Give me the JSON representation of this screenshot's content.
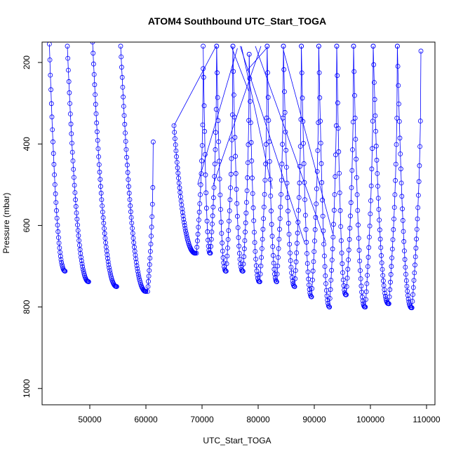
{
  "chart_data": {
    "type": "scatter",
    "title": "ATOM4 Southbound UTC_Start_TOGA",
    "xlabel": "UTC_Start_TOGA",
    "ylabel": "Pressure (mbar)",
    "xlim": [
      41500,
      111500
    ],
    "ylim": [
      1040,
      150
    ],
    "y_reversed": true,
    "x_ticks": [
      50000,
      60000,
      70000,
      80000,
      90000,
      100000,
      110000
    ],
    "x_tick_labels": [
      "50000",
      "60000",
      "70000",
      "80000",
      "90000",
      "100000",
      "110000"
    ],
    "y_ticks": [
      200,
      400,
      600,
      800,
      1000
    ],
    "y_tick_labels": [
      "200",
      "400",
      "600",
      "800",
      "1000"
    ],
    "grid": false,
    "series_color": "#0000ff",
    "marker": "open-circle",
    "connected": true,
    "profiles": [
      {
        "x_start": 42800,
        "x_end": 45600,
        "p_top": 155,
        "p_bottom": 712
      },
      {
        "x_start": 46000,
        "x_end": 49800,
        "p_top": 160,
        "p_bottom": 738
      },
      {
        "x_start": 50500,
        "x_end": 54800,
        "p_top": 150,
        "p_bottom": 750
      },
      {
        "x_start": 55500,
        "x_end": 60000,
        "p_top": 160,
        "p_bottom": 762
      },
      {
        "x_start": 60300,
        "x_end": 61300,
        "p_top": 762,
        "p_bottom": 395
      },
      {
        "x_start": 65000,
        "x_end": 68800,
        "p_top": 355,
        "p_bottom": 668
      },
      {
        "x_start": 69000,
        "x_end": 70200,
        "p_top": 668,
        "p_bottom": 215
      },
      {
        "x_start": 70200,
        "x_end": 71400,
        "p_top": 160,
        "p_bottom": 668
      },
      {
        "x_start": 71500,
        "x_end": 72600,
        "p_top": 668,
        "p_bottom": 160
      },
      {
        "x_start": 72600,
        "x_end": 74200,
        "p_top": 160,
        "p_bottom": 712
      },
      {
        "x_start": 74300,
        "x_end": 75500,
        "p_top": 712,
        "p_bottom": 160
      },
      {
        "x_start": 75500,
        "x_end": 77200,
        "p_top": 160,
        "p_bottom": 712
      },
      {
        "x_start": 77300,
        "x_end": 78400,
        "p_top": 712,
        "p_bottom": 180
      },
      {
        "x_start": 78400,
        "x_end": 80200,
        "p_top": 180,
        "p_bottom": 738
      },
      {
        "x_start": 80300,
        "x_end": 81600,
        "p_top": 738,
        "p_bottom": 160
      },
      {
        "x_start": 81600,
        "x_end": 83300,
        "p_top": 160,
        "p_bottom": 738
      },
      {
        "x_start": 83300,
        "x_end": 84500,
        "p_top": 738,
        "p_bottom": 160
      },
      {
        "x_start": 84500,
        "x_end": 86500,
        "p_top": 160,
        "p_bottom": 750
      },
      {
        "x_start": 86500,
        "x_end": 87700,
        "p_top": 750,
        "p_bottom": 160
      },
      {
        "x_start": 87700,
        "x_end": 89500,
        "p_top": 160,
        "p_bottom": 775
      },
      {
        "x_start": 89500,
        "x_end": 90800,
        "p_top": 775,
        "p_bottom": 160
      },
      {
        "x_start": 90800,
        "x_end": 92700,
        "p_top": 160,
        "p_bottom": 800
      },
      {
        "x_start": 92700,
        "x_end": 94000,
        "p_top": 800,
        "p_bottom": 160
      },
      {
        "x_start": 94000,
        "x_end": 95600,
        "p_top": 160,
        "p_bottom": 770
      },
      {
        "x_start": 95700,
        "x_end": 97000,
        "p_top": 770,
        "p_bottom": 160
      },
      {
        "x_start": 97000,
        "x_end": 99000,
        "p_top": 160,
        "p_bottom": 800
      },
      {
        "x_start": 99100,
        "x_end": 100500,
        "p_top": 800,
        "p_bottom": 160
      },
      {
        "x_start": 100500,
        "x_end": 103200,
        "p_top": 160,
        "p_bottom": 792
      },
      {
        "x_start": 103300,
        "x_end": 104800,
        "p_top": 792,
        "p_bottom": 160
      },
      {
        "x_start": 104800,
        "x_end": 107300,
        "p_top": 160,
        "p_bottom": 802
      },
      {
        "x_start": 107400,
        "x_end": 109000,
        "p_top": 802,
        "p_bottom": 172
      }
    ],
    "connector_lines": [
      {
        "x1": 65000,
        "p1": 355,
        "x2": 72500,
        "p2": 160
      },
      {
        "x1": 69200,
        "p1": 500,
        "x2": 76300,
        "p2": 165
      },
      {
        "x1": 75200,
        "p1": 160,
        "x2": 78300,
        "p2": 270
      },
      {
        "x1": 76800,
        "p1": 160,
        "x2": 88200,
        "p2": 640
      },
      {
        "x1": 77000,
        "p1": 160,
        "x2": 82500,
        "p2": 510
      },
      {
        "x1": 78000,
        "p1": 220,
        "x2": 81500,
        "p2": 165
      },
      {
        "x1": 79500,
        "p1": 160,
        "x2": 92000,
        "p2": 640
      },
      {
        "x1": 84500,
        "p1": 170,
        "x2": 93300,
        "p2": 620
      },
      {
        "x1": 72000,
        "p1": 500,
        "x2": 80500,
        "p2": 160
      }
    ]
  }
}
